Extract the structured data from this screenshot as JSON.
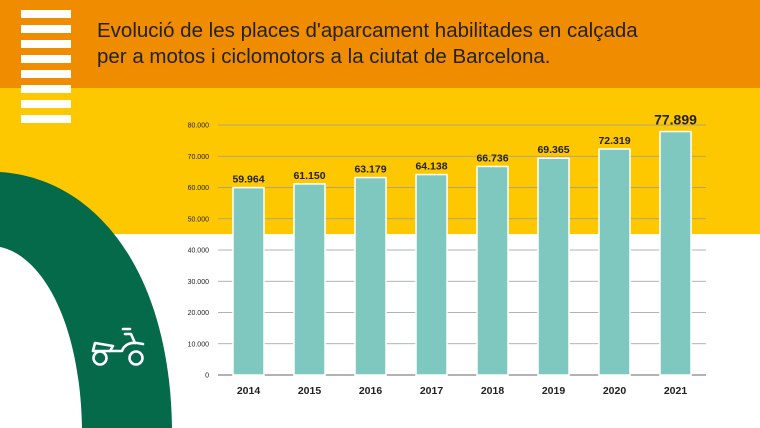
{
  "title_lines": [
    "Evolució de les places d'aparcament habilitades en calçada",
    "per a motos i ciclomotors a la ciutat de Barcelona."
  ],
  "icon": "scooter-icon",
  "colors": {
    "header_orange": "#f08c00",
    "band_yellow": "#fdc800",
    "bar_teal": "#7fc8c0",
    "road_green": "#046a49"
  },
  "chart_data": {
    "type": "bar",
    "title": "Evolució de les places d'aparcament habilitades en calçada per a motos i ciclomotors a la ciutat de Barcelona.",
    "categories": [
      "2014",
      "2015",
      "2016",
      "2017",
      "2018",
      "2019",
      "2020",
      "2021"
    ],
    "values": [
      59964,
      61150,
      63179,
      64138,
      66736,
      69365,
      72319,
      77899
    ],
    "value_labels": [
      "59.964",
      "61.150",
      "63.179",
      "64.138",
      "66.736",
      "69.365",
      "72.319",
      "77.899"
    ],
    "y_ticks": [
      0,
      10000,
      20000,
      30000,
      40000,
      50000,
      60000,
      70000,
      80000
    ],
    "y_tick_labels": [
      "0",
      "10.000",
      "20.000",
      "30.000",
      "40.000",
      "50.000",
      "60.000",
      "70.000",
      "80.000"
    ],
    "ylim": [
      0,
      80000
    ],
    "grid": true,
    "xlabel": "",
    "ylabel": ""
  }
}
